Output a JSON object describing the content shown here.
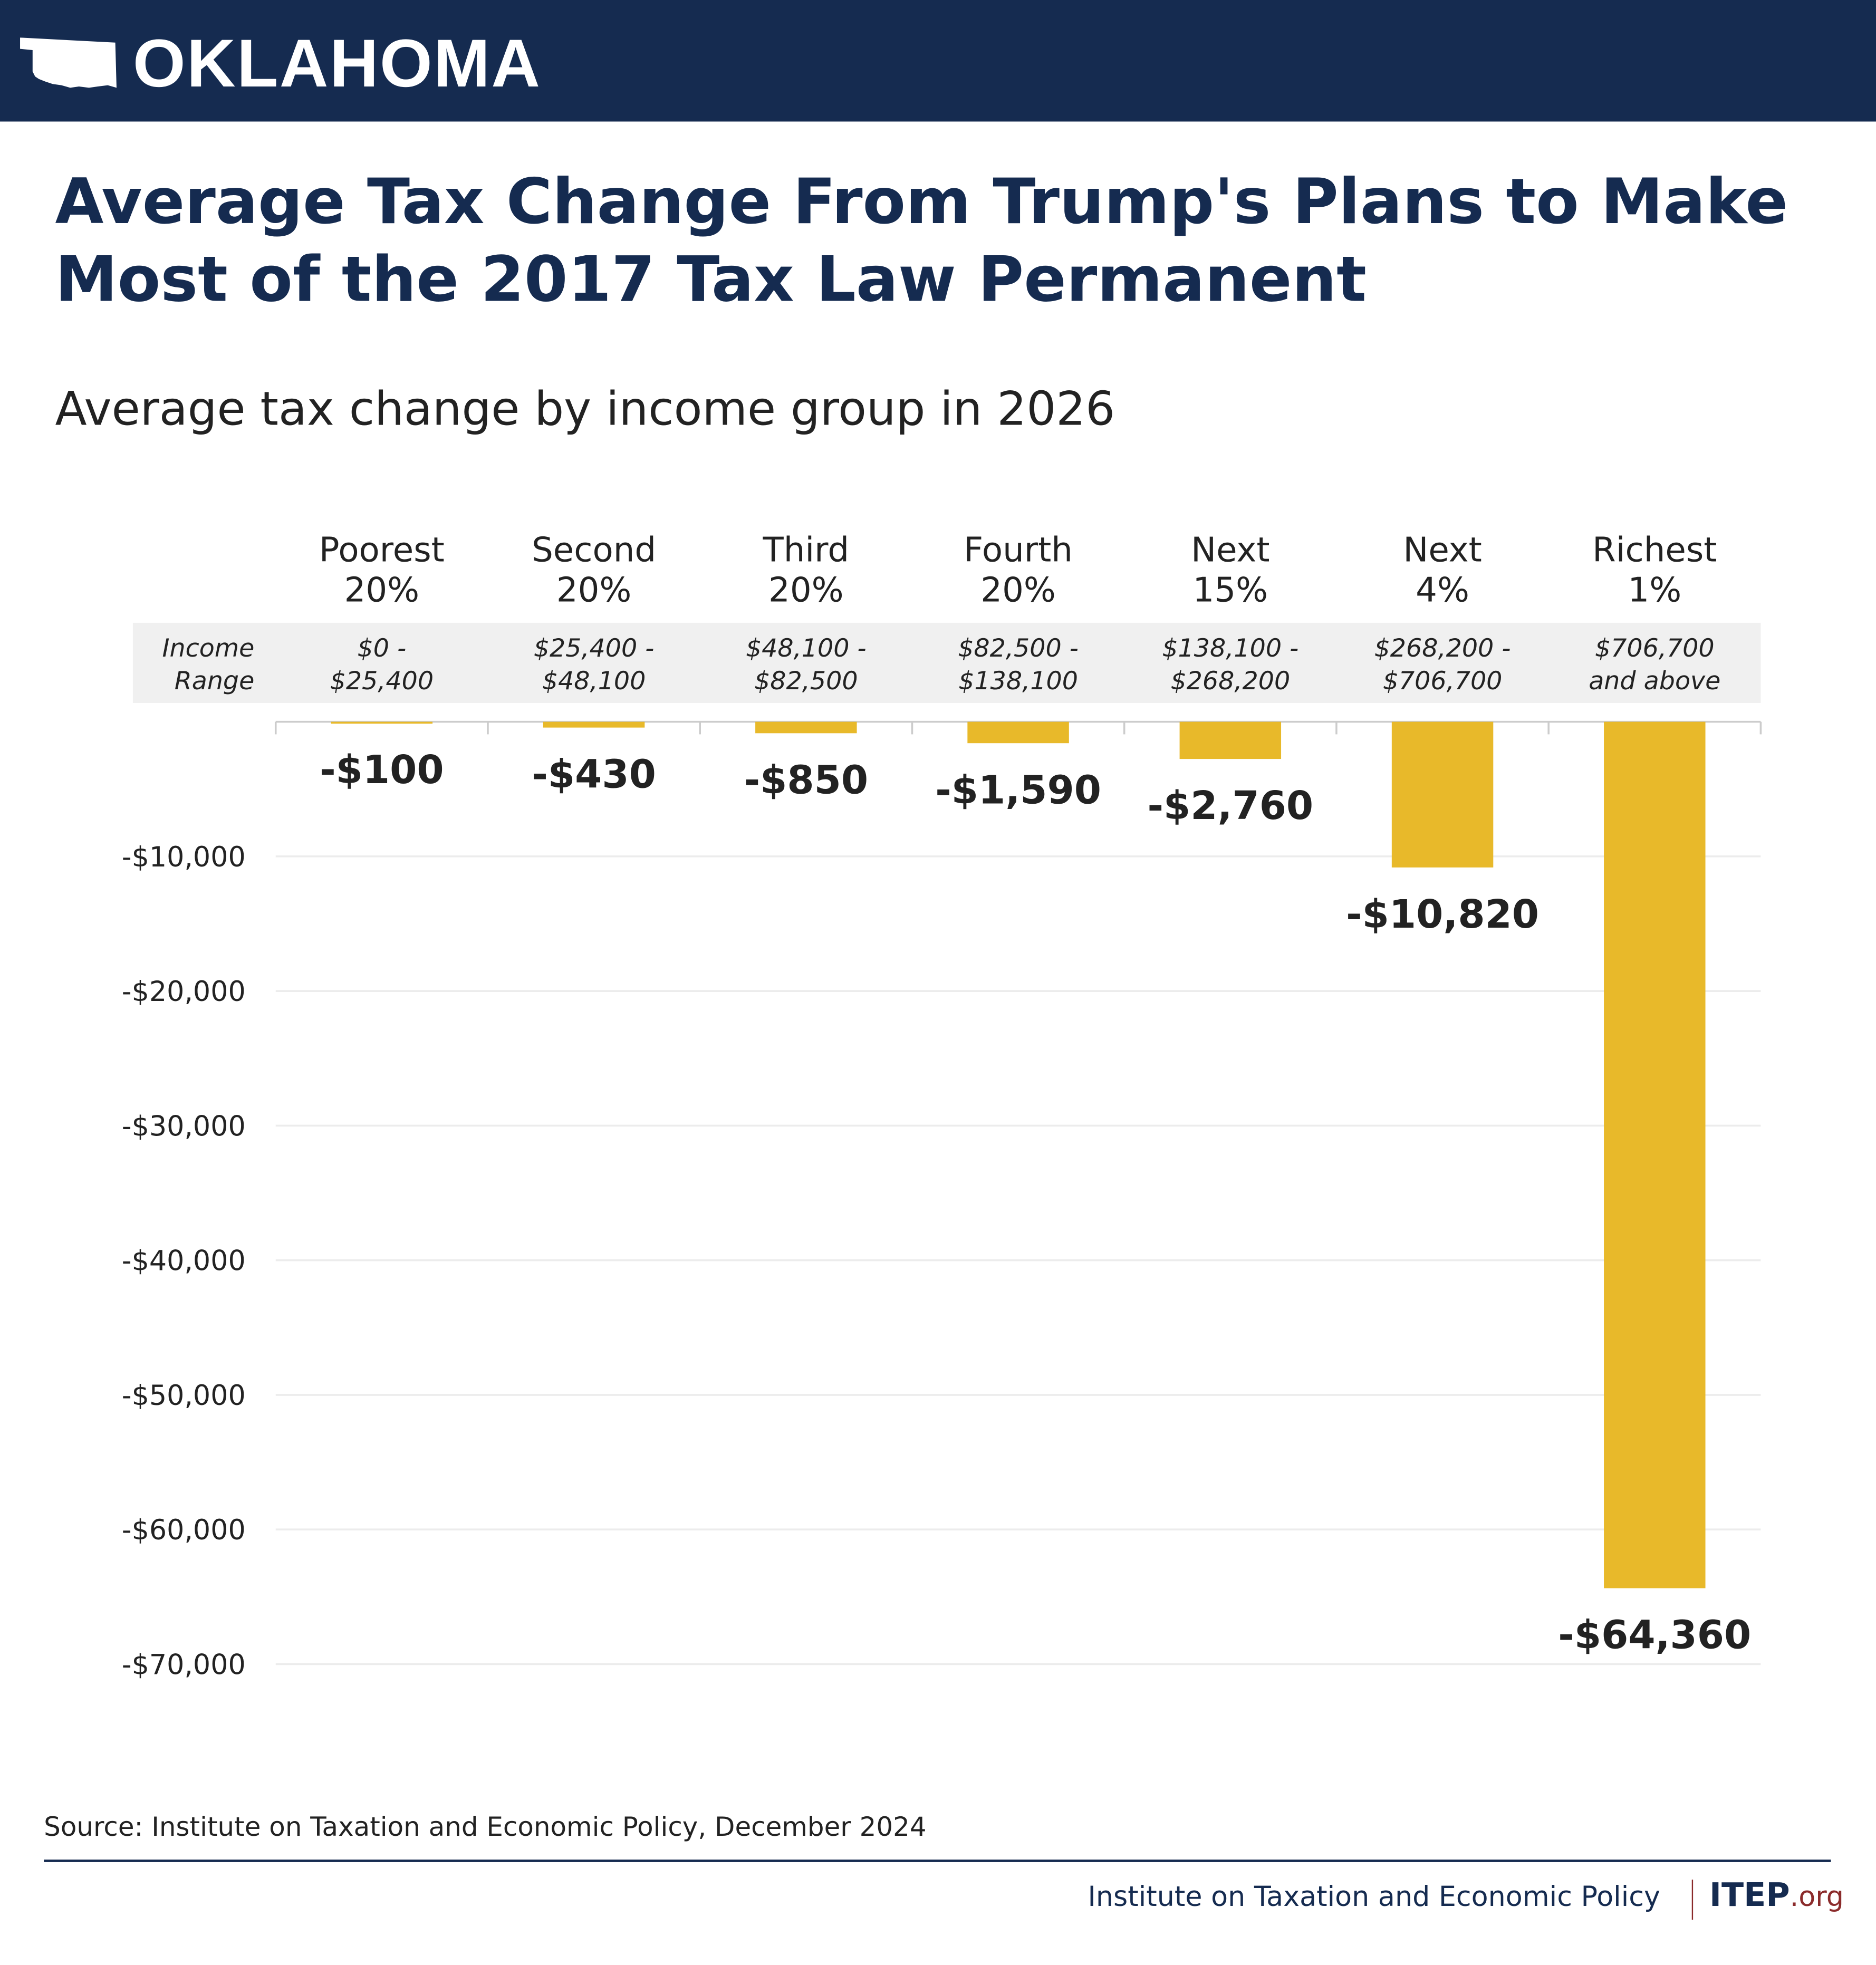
{
  "header": {
    "state": "OKLAHOMA",
    "icon": "oklahoma-state-shape-icon"
  },
  "title": "Average Tax Change From Trump's Plans to Make Most of the 2017 Tax Law Permanent",
  "subtitle": "Average tax change by income group in 2026",
  "chart_data": {
    "type": "bar",
    "title": "Average Tax Change From Trump's Plans to Make Most of the 2017 Tax Law Permanent",
    "subtitle": "Average tax change by income group in 2026",
    "categories": [
      [
        "Poorest",
        "20%"
      ],
      [
        "Second",
        "20%"
      ],
      [
        "Third",
        "20%"
      ],
      [
        "Fourth",
        "20%"
      ],
      [
        "Next",
        "15%"
      ],
      [
        "Next",
        "4%"
      ],
      [
        "Richest",
        "1%"
      ]
    ],
    "income_range_label": [
      "Income",
      "Range"
    ],
    "income_ranges": [
      [
        "$0 -",
        "$25,400"
      ],
      [
        "$25,400 -",
        "$48,100"
      ],
      [
        "$48,100 -",
        "$82,500"
      ],
      [
        "$82,500 -",
        "$138,100"
      ],
      [
        "$138,100 -",
        "$268,200"
      ],
      [
        "$268,200 -",
        "$706,700"
      ],
      [
        "$706,700",
        "and above"
      ]
    ],
    "values": [
      -100,
      -430,
      -850,
      -1590,
      -2760,
      -10820,
      -64360
    ],
    "data_labels": [
      "-$100",
      "-$430",
      "-$850",
      "-$1,590",
      "-$2,760",
      "-$10,820",
      "-$64,360"
    ],
    "ylim": [
      -70000,
      0
    ],
    "yticks": [
      -10000,
      -20000,
      -30000,
      -40000,
      -50000,
      -60000,
      -70000
    ],
    "ytick_labels": [
      "-$10,000",
      "-$20,000",
      "-$30,000",
      "-$40,000",
      "-$50,000",
      "-$60,000",
      "-$70,000"
    ],
    "grid": true,
    "bar_color": "#e8b92a"
  },
  "source": "Source: Institute on Taxation and Economic Policy, December 2024",
  "footer": {
    "org": "Institute on Taxation and Economic Policy",
    "logo_main": "ITEP",
    "logo_suffix": ".org"
  },
  "colors": {
    "navy": "#152b50",
    "gold": "#e8b92a",
    "band": "#f0f0f0",
    "accent_red": "#8b2b2b"
  }
}
